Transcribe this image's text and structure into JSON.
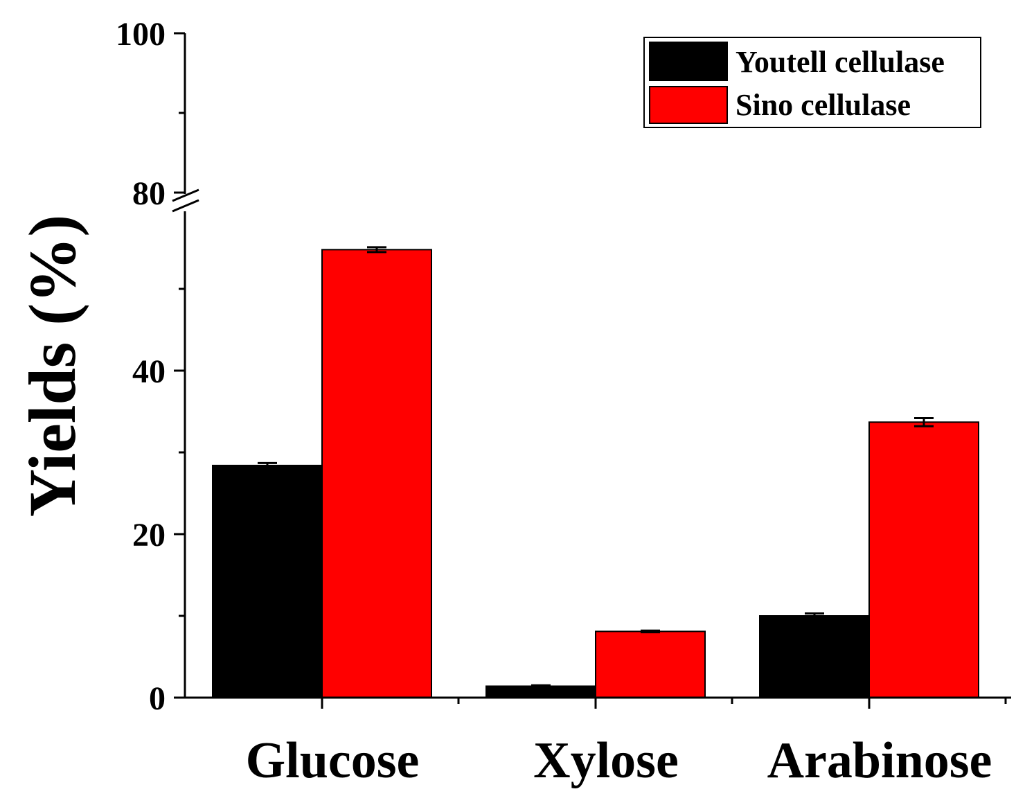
{
  "chart_data": {
    "type": "bar",
    "title": "",
    "xlabel": "",
    "ylabel": "Yields (%)",
    "categories": [
      "Glucose",
      "Xylose",
      "Arabinose"
    ],
    "series": [
      {
        "name": "Youtell cellulase",
        "color": "#000000",
        "values": [
          28.4,
          1.4,
          10.0
        ],
        "errors": [
          0.3,
          0.1,
          0.3
        ]
      },
      {
        "name": "Sino cellulase",
        "color": "#ff0000",
        "values": [
          54.8,
          8.1,
          33.7
        ],
        "errors": [
          0.3,
          0.1,
          0.5
        ]
      }
    ],
    "ylim": [
      0,
      100
    ],
    "axis_break": [
      55,
      80
    ],
    "lower_ticks": [
      {
        "value": 0,
        "label": "0"
      },
      {
        "value": 20,
        "label": "20"
      },
      {
        "value": 40,
        "label": "40"
      }
    ],
    "upper_ticks": [
      {
        "value": 80,
        "label": "80"
      },
      {
        "value": 100,
        "label": "100"
      }
    ],
    "legend": {
      "position": "top-right",
      "entries": [
        "Youtell cellulase",
        "Sino cellulase"
      ]
    }
  }
}
